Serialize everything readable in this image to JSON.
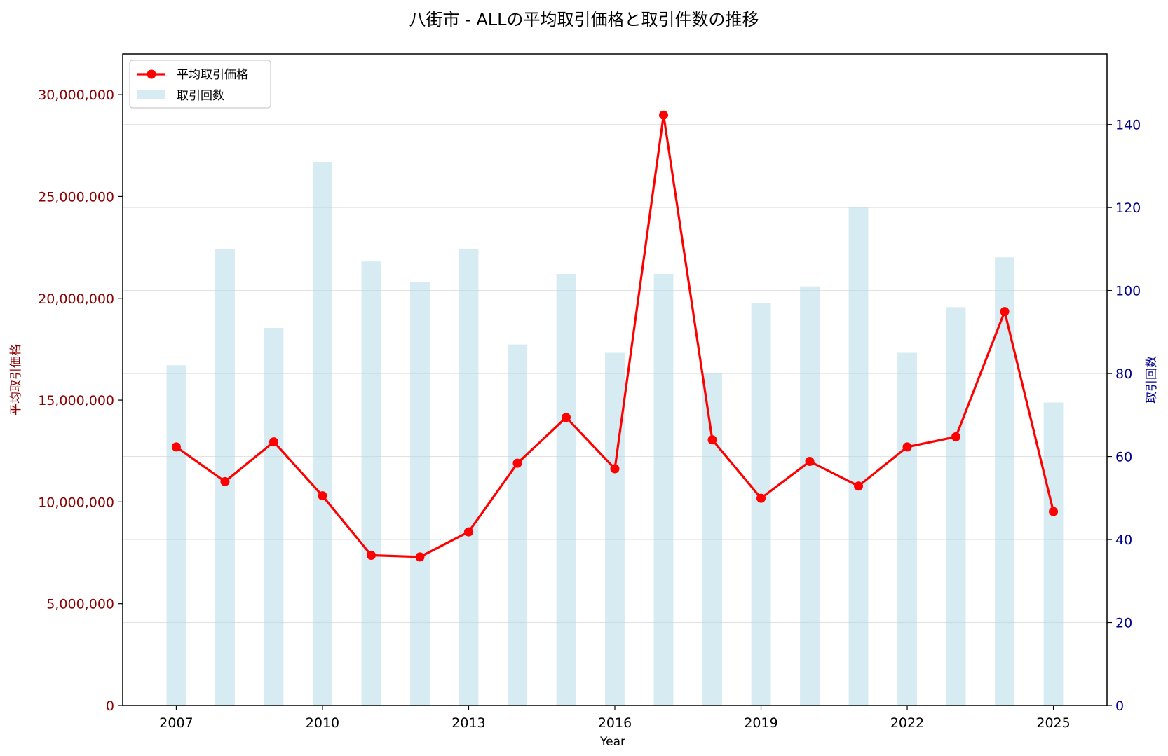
{
  "chart_data": {
    "type": "bar",
    "title": "八街市 - ALLの平均取引価格と取引件数の推移",
    "xlabel": "Year",
    "ylabel_left": "平均取引価格",
    "ylabel_right": "取引回数",
    "x": [
      2007,
      2008,
      2009,
      2010,
      2011,
      2012,
      2013,
      2014,
      2015,
      2016,
      2017,
      2018,
      2019,
      2020,
      2021,
      2022,
      2023,
      2024,
      2025
    ],
    "x_ticks": [
      "2007",
      "2010",
      "2013",
      "2016",
      "2019",
      "2022",
      "2025"
    ],
    "y_left_ticks": [
      "0",
      "5,000,000",
      "10,000,000",
      "15,000,000",
      "20,000,000",
      "25,000,000",
      "30,000,000"
    ],
    "y_right_ticks": [
      "0",
      "20",
      "40",
      "60",
      "80",
      "100",
      "120",
      "140"
    ],
    "ylim_left": [
      0,
      32000000
    ],
    "ylim_right": [
      0,
      157
    ],
    "xlim": [
      2005.9,
      2026.1
    ],
    "grid": "horizontal (right axis)",
    "legend_position": "upper-left",
    "series": [
      {
        "name": "平均取引価格",
        "kind": "line",
        "axis": "left",
        "color": "#ff0000",
        "values": [
          12700000,
          11000000,
          12950000,
          10300000,
          7380000,
          7300000,
          8530000,
          11900000,
          14150000,
          11630000,
          29000000,
          13050000,
          10180000,
          11990000,
          10780000,
          12700000,
          13200000,
          19350000,
          9530000
        ]
      },
      {
        "name": "取引回数",
        "kind": "bar",
        "axis": "right",
        "color": "#add8e6",
        "values": [
          82,
          110,
          91,
          131,
          107,
          102,
          110,
          87,
          104,
          85,
          104,
          80,
          97,
          101,
          120,
          85,
          96,
          108,
          73
        ]
      }
    ]
  },
  "colors": {
    "left_axis": "#8b0000",
    "right_axis": "#00008b",
    "line": "#ff0000",
    "bar": "#add8e6"
  }
}
